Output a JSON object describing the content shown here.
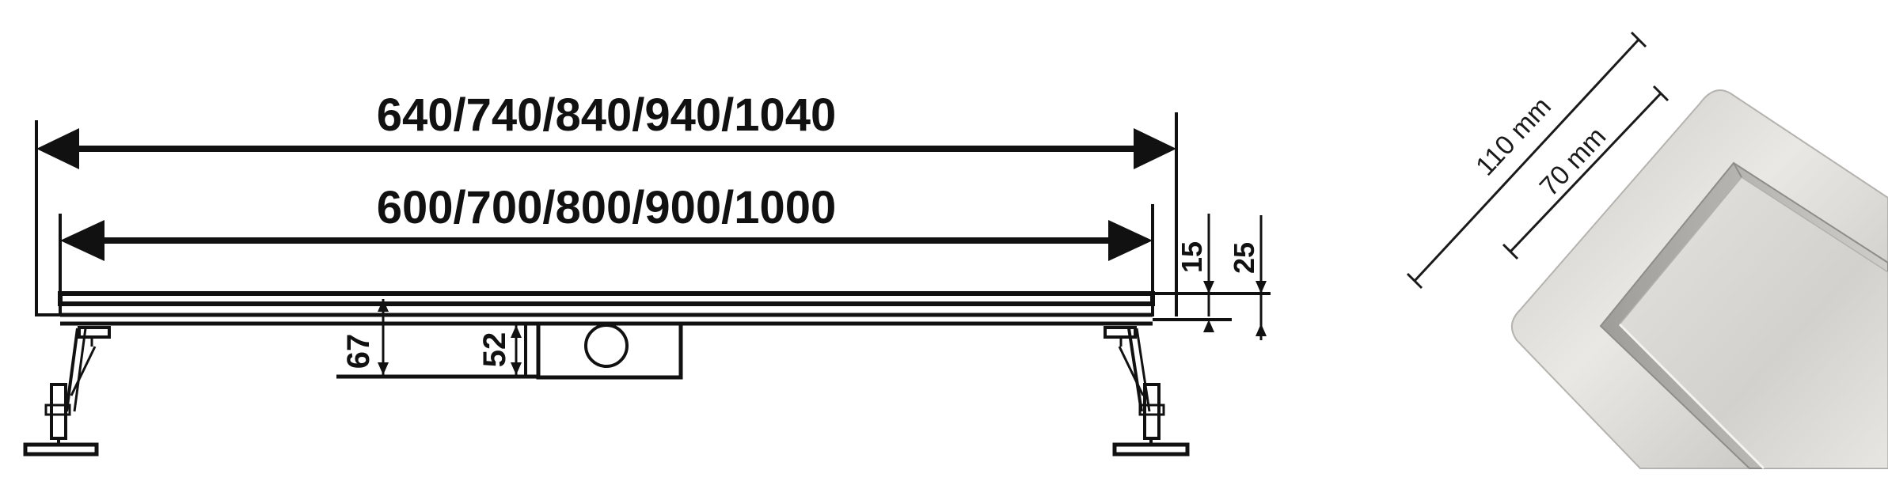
{
  "technical_drawing": {
    "overall_length_label": "640/740/840/940/1040",
    "channel_length_label": "600/700/800/900/1000",
    "grate_height_label": "15",
    "frame_height_label": "25",
    "body_height_label": "67",
    "outlet_height_label": "52"
  },
  "product_photo": {
    "outer_width_label": "110 mm",
    "inner_width_label": "70 mm"
  },
  "colors": {
    "line": "#111111",
    "steel_light": "#e6e5e2",
    "steel_mid": "#cfcdc9",
    "steel_dark": "#a9a7a3"
  }
}
